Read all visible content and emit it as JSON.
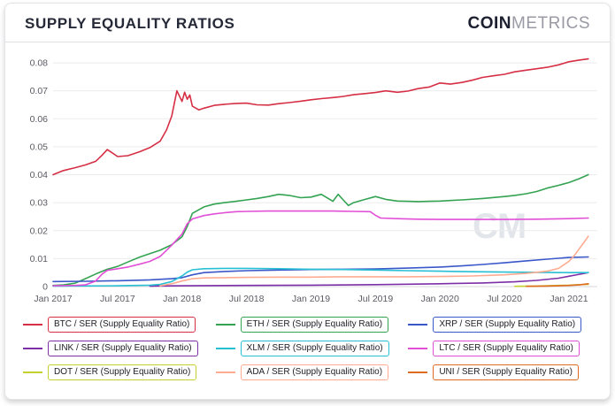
{
  "header": {
    "title": "SUPPLY EQUALITY RATIOS",
    "brand_bold": "COIN",
    "brand_light": "METRICS"
  },
  "watermark": "CM",
  "chart_data": {
    "type": "line",
    "title": "SUPPLY EQUALITY RATIOS",
    "xlabel": "",
    "ylabel": "",
    "grid": true,
    "legend_position": "bottom",
    "xlim": [
      2017.0,
      2021.22
    ],
    "ylim": [
      0,
      0.0835
    ],
    "y_ticks": [
      0,
      0.01,
      0.02,
      0.03,
      0.04,
      0.05,
      0.06,
      0.07,
      0.08
    ],
    "x_ticks": [
      {
        "v": 2017.0,
        "label": "Jan 2017"
      },
      {
        "v": 2017.5,
        "label": "Jul 2017"
      },
      {
        "v": 2018.0,
        "label": "Jan 2018"
      },
      {
        "v": 2018.5,
        "label": "Jul 2018"
      },
      {
        "v": 2019.0,
        "label": "Jan 2019"
      },
      {
        "v": 2019.5,
        "label": "Jul 2019"
      },
      {
        "v": 2020.0,
        "label": "Jan 2020"
      },
      {
        "v": 2020.5,
        "label": "Jul 2020"
      },
      {
        "v": 2021.0,
        "label": "Jan 2021"
      }
    ],
    "series": [
      {
        "name": "BTC / SER (Supply Equality Ratio)",
        "key": "btc",
        "color": "#d62f45",
        "x": [
          2017.0,
          2017.08,
          2017.17,
          2017.25,
          2017.33,
          2017.38,
          2017.42,
          2017.46,
          2017.5,
          2017.58,
          2017.67,
          2017.75,
          2017.83,
          2017.88,
          2017.92,
          2017.96,
          2018.0,
          2018.02,
          2018.04,
          2018.06,
          2018.08,
          2018.13,
          2018.17,
          2018.25,
          2018.33,
          2018.42,
          2018.5,
          2018.58,
          2018.67,
          2018.75,
          2018.83,
          2018.92,
          2019.0,
          2019.08,
          2019.17,
          2019.25,
          2019.33,
          2019.42,
          2019.5,
          2019.58,
          2019.67,
          2019.75,
          2019.83,
          2019.92,
          2020.0,
          2020.08,
          2020.17,
          2020.25,
          2020.33,
          2020.42,
          2020.5,
          2020.58,
          2020.67,
          2020.75,
          2020.83,
          2020.92,
          2021.0,
          2021.08,
          2021.15
        ],
        "y": [
          0.04,
          0.0415,
          0.0425,
          0.0435,
          0.0448,
          0.047,
          0.049,
          0.0478,
          0.0465,
          0.0468,
          0.0482,
          0.0497,
          0.052,
          0.056,
          0.061,
          0.07,
          0.0662,
          0.0695,
          0.067,
          0.0685,
          0.0645,
          0.0632,
          0.0638,
          0.0648,
          0.0652,
          0.0655,
          0.0656,
          0.065,
          0.0649,
          0.0654,
          0.0658,
          0.0663,
          0.0668,
          0.0672,
          0.0676,
          0.068,
          0.0686,
          0.069,
          0.0694,
          0.07,
          0.0695,
          0.0699,
          0.0708,
          0.0714,
          0.0728,
          0.0724,
          0.073,
          0.0738,
          0.0748,
          0.0754,
          0.0759,
          0.0768,
          0.0774,
          0.0779,
          0.0784,
          0.0793,
          0.0804,
          0.081,
          0.0814
        ]
      },
      {
        "name": "ETH / SER (Supply Equality Ratio)",
        "key": "eth",
        "color": "#33a352",
        "x": [
          2017.0,
          2017.08,
          2017.17,
          2017.25,
          2017.33,
          2017.42,
          2017.5,
          2017.58,
          2017.67,
          2017.75,
          2017.83,
          2017.92,
          2018.0,
          2018.04,
          2018.08,
          2018.17,
          2018.25,
          2018.33,
          2018.42,
          2018.5,
          2018.58,
          2018.67,
          2018.75,
          2018.83,
          2018.92,
          2019.0,
          2019.08,
          2019.17,
          2019.21,
          2019.25,
          2019.29,
          2019.33,
          2019.42,
          2019.5,
          2019.58,
          2019.67,
          2019.75,
          2019.83,
          2019.92,
          2020.0,
          2020.17,
          2020.33,
          2020.5,
          2020.58,
          2020.67,
          2020.75,
          2020.83,
          2020.92,
          2021.0,
          2021.08,
          2021.15
        ],
        "y": [
          0.0004,
          0.0006,
          0.0012,
          0.0028,
          0.0045,
          0.0062,
          0.0072,
          0.0088,
          0.0105,
          0.0118,
          0.013,
          0.015,
          0.0178,
          0.0215,
          0.0262,
          0.0285,
          0.0295,
          0.03,
          0.0305,
          0.031,
          0.0315,
          0.0322,
          0.033,
          0.0326,
          0.0318,
          0.032,
          0.033,
          0.0305,
          0.033,
          0.031,
          0.029,
          0.03,
          0.0312,
          0.0322,
          0.0312,
          0.0306,
          0.0305,
          0.0304,
          0.0305,
          0.0306,
          0.031,
          0.0315,
          0.0322,
          0.0326,
          0.0332,
          0.034,
          0.0352,
          0.0362,
          0.0372,
          0.0386,
          0.04
        ]
      },
      {
        "name": "XRP / SER (Supply Equality Ratio)",
        "key": "xrp",
        "color": "#3a57c9",
        "x": [
          2017.0,
          2017.25,
          2017.5,
          2017.75,
          2017.92,
          2018.0,
          2018.08,
          2018.17,
          2018.33,
          2018.5,
          2018.75,
          2019.0,
          2019.25,
          2019.5,
          2019.75,
          2020.0,
          2020.17,
          2020.33,
          2020.5,
          2020.67,
          2020.83,
          2021.0,
          2021.15
        ],
        "y": [
          0.0018,
          0.0019,
          0.0021,
          0.0024,
          0.0028,
          0.0032,
          0.0042,
          0.005,
          0.0054,
          0.0057,
          0.0059,
          0.0061,
          0.0062,
          0.0063,
          0.0066,
          0.007,
          0.0074,
          0.0079,
          0.0085,
          0.0092,
          0.0098,
          0.0104,
          0.0106
        ]
      },
      {
        "name": "LINK / SER (Supply Equality Ratio)",
        "key": "link",
        "color": "#7d2fa8",
        "x": [
          2017.75,
          2018.0,
          2018.5,
          2019.0,
          2019.5,
          2020.0,
          2020.33,
          2020.58,
          2020.75,
          2020.92,
          2021.0,
          2021.08,
          2021.15
        ],
        "y": [
          0.0002,
          0.0003,
          0.0004,
          0.0005,
          0.0007,
          0.001,
          0.0013,
          0.0017,
          0.0022,
          0.003,
          0.0037,
          0.0044,
          0.005
        ]
      },
      {
        "name": "XLM / SER (Supply Equality Ratio)",
        "key": "xlm",
        "color": "#27bfd4",
        "x": [
          2017.0,
          2017.5,
          2017.75,
          2017.83,
          2017.92,
          2018.0,
          2018.04,
          2018.08,
          2018.17,
          2018.33,
          2018.5,
          2018.75,
          2019.0,
          2019.25,
          2019.5,
          2019.75,
          2020.0,
          2020.25,
          2020.5,
          2020.75,
          2021.0,
          2021.15
        ],
        "y": [
          0.0002,
          0.0003,
          0.0005,
          0.0008,
          0.0018,
          0.0038,
          0.0052,
          0.006,
          0.0064,
          0.0065,
          0.0065,
          0.0064,
          0.0062,
          0.0061,
          0.0059,
          0.0057,
          0.0055,
          0.0053,
          0.0052,
          0.0051,
          0.005,
          0.005
        ]
      },
      {
        "name": "LTC / SER (Supply Equality Ratio)",
        "key": "ltc",
        "color": "#e24fd7",
        "x": [
          2017.0,
          2017.17,
          2017.25,
          2017.33,
          2017.38,
          2017.42,
          2017.5,
          2017.58,
          2017.67,
          2017.75,
          2017.83,
          2017.92,
          2018.0,
          2018.04,
          2018.08,
          2018.17,
          2018.25,
          2018.33,
          2018.42,
          2018.5,
          2018.67,
          2018.83,
          2019.0,
          2019.17,
          2019.33,
          2019.46,
          2019.5,
          2019.54,
          2019.67,
          2019.83,
          2020.0,
          2020.25,
          2020.5,
          2020.75,
          2021.0,
          2021.15
        ],
        "y": [
          0.0003,
          0.0004,
          0.0006,
          0.002,
          0.0045,
          0.0058,
          0.0064,
          0.007,
          0.008,
          0.009,
          0.0108,
          0.0148,
          0.0188,
          0.0225,
          0.0242,
          0.0254,
          0.026,
          0.0264,
          0.0268,
          0.0269,
          0.027,
          0.027,
          0.027,
          0.027,
          0.0269,
          0.0268,
          0.0255,
          0.0245,
          0.0243,
          0.0241,
          0.024,
          0.024,
          0.024,
          0.0241,
          0.0243,
          0.0245
        ]
      },
      {
        "name": "DOT / SER (Supply Equality Ratio)",
        "key": "dot",
        "color": "#c5cf2d",
        "x": [
          2020.58,
          2020.75,
          2020.92,
          2021.0,
          2021.08,
          2021.15
        ],
        "y": [
          0.0001,
          0.0002,
          0.0004,
          0.0005,
          0.0007,
          0.0008
        ]
      },
      {
        "name": "ADA / SER (Supply Equality Ratio)",
        "key": "ada",
        "color": "#ffab91",
        "x": [
          2017.83,
          2017.92,
          2018.0,
          2018.08,
          2018.17,
          2018.33,
          2018.5,
          2018.75,
          2019.0,
          2019.25,
          2019.5,
          2019.75,
          2020.0,
          2020.25,
          2020.5,
          2020.67,
          2020.83,
          2020.92,
          2021.0,
          2021.04,
          2021.08,
          2021.12,
          2021.15
        ],
        "y": [
          0.0003,
          0.001,
          0.002,
          0.0028,
          0.0031,
          0.0032,
          0.0033,
          0.0034,
          0.0034,
          0.0035,
          0.0035,
          0.0035,
          0.0036,
          0.0038,
          0.0042,
          0.0047,
          0.0055,
          0.0065,
          0.009,
          0.011,
          0.0135,
          0.016,
          0.018
        ]
      },
      {
        "name": "UNI / SER (Supply Equality Ratio)",
        "key": "uni",
        "color": "#dd6b20",
        "x": [
          2020.67,
          2020.83,
          2021.0,
          2021.08,
          2021.15
        ],
        "y": [
          0.0001,
          0.0002,
          0.0004,
          0.0006,
          0.001
        ]
      }
    ]
  }
}
